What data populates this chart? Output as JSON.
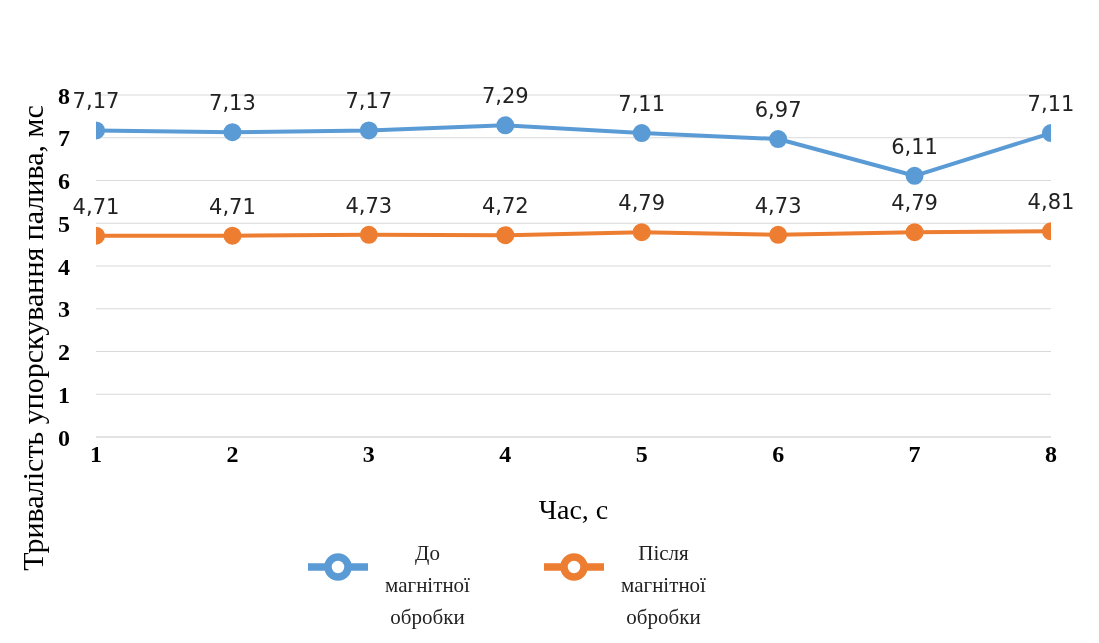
{
  "chart_data": {
    "type": "line",
    "xlabel": "Час, с",
    "ylabel": "Тривалість упорскування палива, мс",
    "x": [
      1,
      2,
      3,
      4,
      5,
      6,
      7,
      8
    ],
    "xlim": [
      1,
      8
    ],
    "xticks": [
      1,
      2,
      3,
      4,
      5,
      6,
      7,
      8
    ],
    "ylim": [
      0,
      8
    ],
    "yticks": [
      0,
      1,
      2,
      3,
      4,
      5,
      6,
      7,
      8
    ],
    "grid": "y",
    "legend": "bottom",
    "marker": "circle",
    "line_style": "solid",
    "series": [
      {
        "name": "До магнітної обробки",
        "color": "#5b9bd5",
        "values": [
          7.17,
          7.13,
          7.17,
          7.29,
          7.11,
          6.97,
          6.11,
          7.11
        ],
        "value_labels": [
          "7,17",
          "7,13",
          "7,17",
          "7,29",
          "7,11",
          "6,97",
          "6,11",
          "7,11"
        ]
      },
      {
        "name": "Після магнітної обробки",
        "color": "#ed7d31",
        "values": [
          4.71,
          4.71,
          4.73,
          4.72,
          4.79,
          4.73,
          4.79,
          4.81
        ],
        "value_labels": [
          "4,71",
          "4,71",
          "4,73",
          "4,72",
          "4,79",
          "4,73",
          "4,79",
          "4,81"
        ]
      }
    ]
  }
}
